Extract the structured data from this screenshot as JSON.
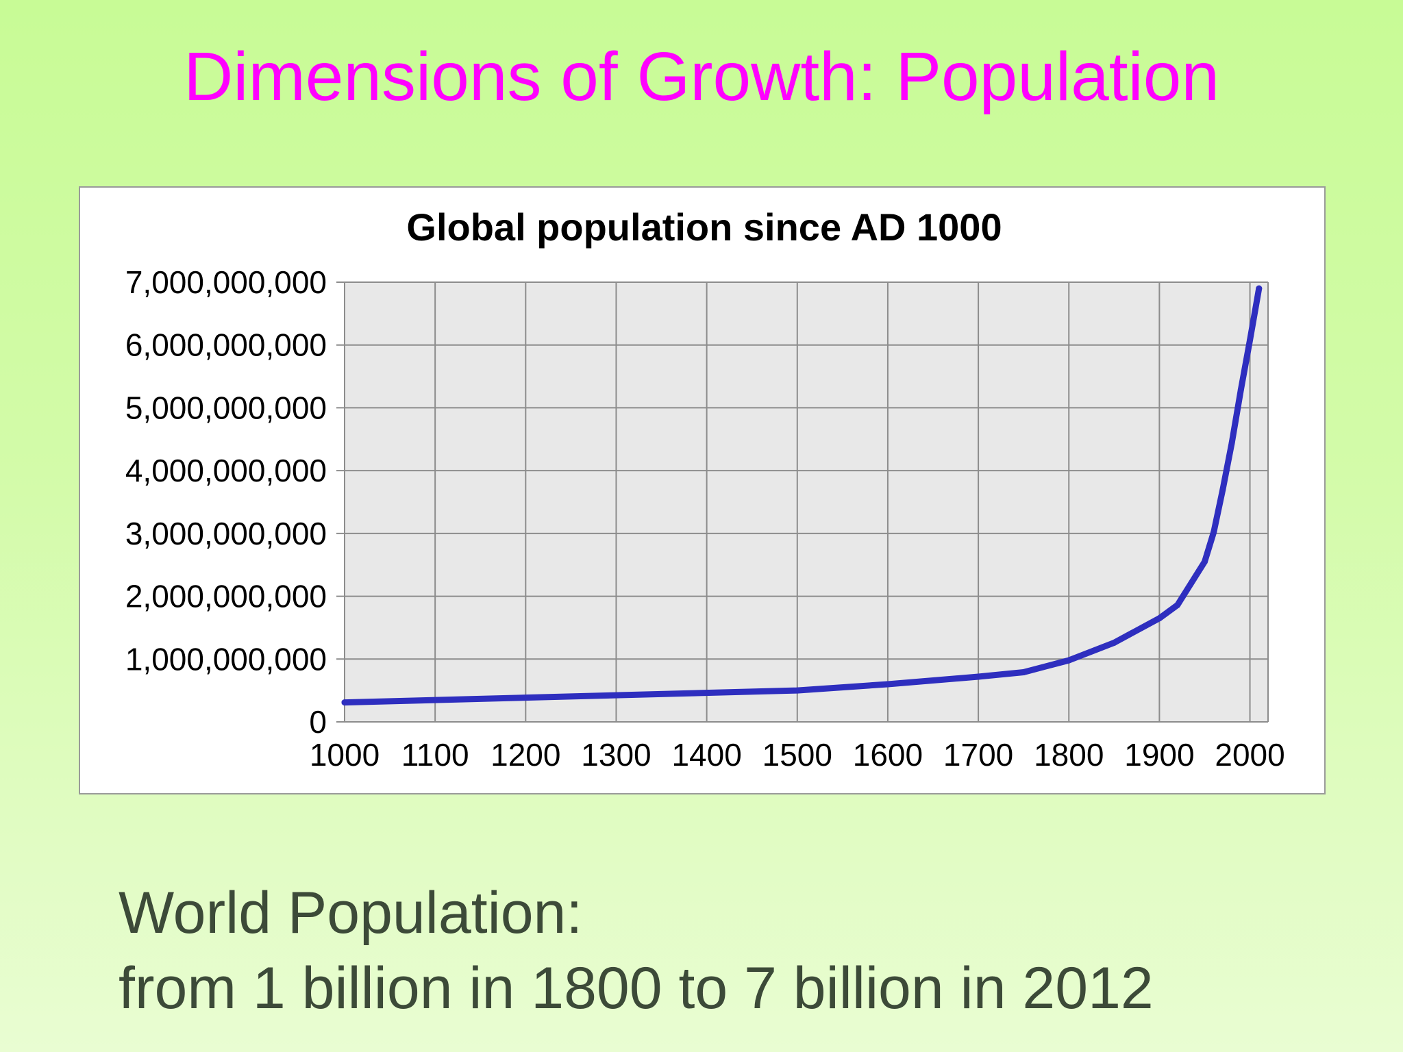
{
  "slide": {
    "title": "Dimensions of Growth: Population",
    "caption_line1": "World Population:",
    "caption_line2": "from 1 billion in 1800 to 7 billion in 2012",
    "title_color": "#ff00ff",
    "caption_color": "#3c4a38"
  },
  "chart_data": {
    "type": "line",
    "title": "Global population since AD 1000",
    "xlabel": "",
    "ylabel": "",
    "xlim": [
      1000,
      2020
    ],
    "ylim": [
      0,
      7000000000
    ],
    "x_ticks": [
      1000,
      1100,
      1200,
      1300,
      1400,
      1500,
      1600,
      1700,
      1800,
      1900,
      2000
    ],
    "x_tick_labels": [
      "1000",
      "1100",
      "1200",
      "1300",
      "1400",
      "1500",
      "1600",
      "1700",
      "1800",
      "1900",
      "2000"
    ],
    "y_ticks": [
      0,
      1000000000,
      2000000000,
      3000000000,
      4000000000,
      5000000000,
      6000000000,
      7000000000
    ],
    "y_tick_labels": [
      "0",
      "1,000,000,000",
      "2,000,000,000",
      "3,000,000,000",
      "4,000,000,000",
      "5,000,000,000",
      "6,000,000,000",
      "7,000,000,000"
    ],
    "grid": true,
    "legend": "none",
    "plot_background": "#e8e8e8",
    "grid_color": "#8c8c8c",
    "series": [
      {
        "color": "#2e2ebf",
        "x": [
          1000,
          1500,
          1600,
          1700,
          1750,
          1800,
          1850,
          1900,
          1920,
          1950,
          1960,
          1970,
          1980,
          1990,
          2000,
          2010
        ],
        "y": [
          310000000,
          500000000,
          600000000,
          720000000,
          790000000,
          980000000,
          1260000000,
          1650000000,
          1860000000,
          2550000000,
          3020000000,
          3700000000,
          4440000000,
          5290000000,
          6080000000,
          6900000000
        ]
      }
    ]
  }
}
